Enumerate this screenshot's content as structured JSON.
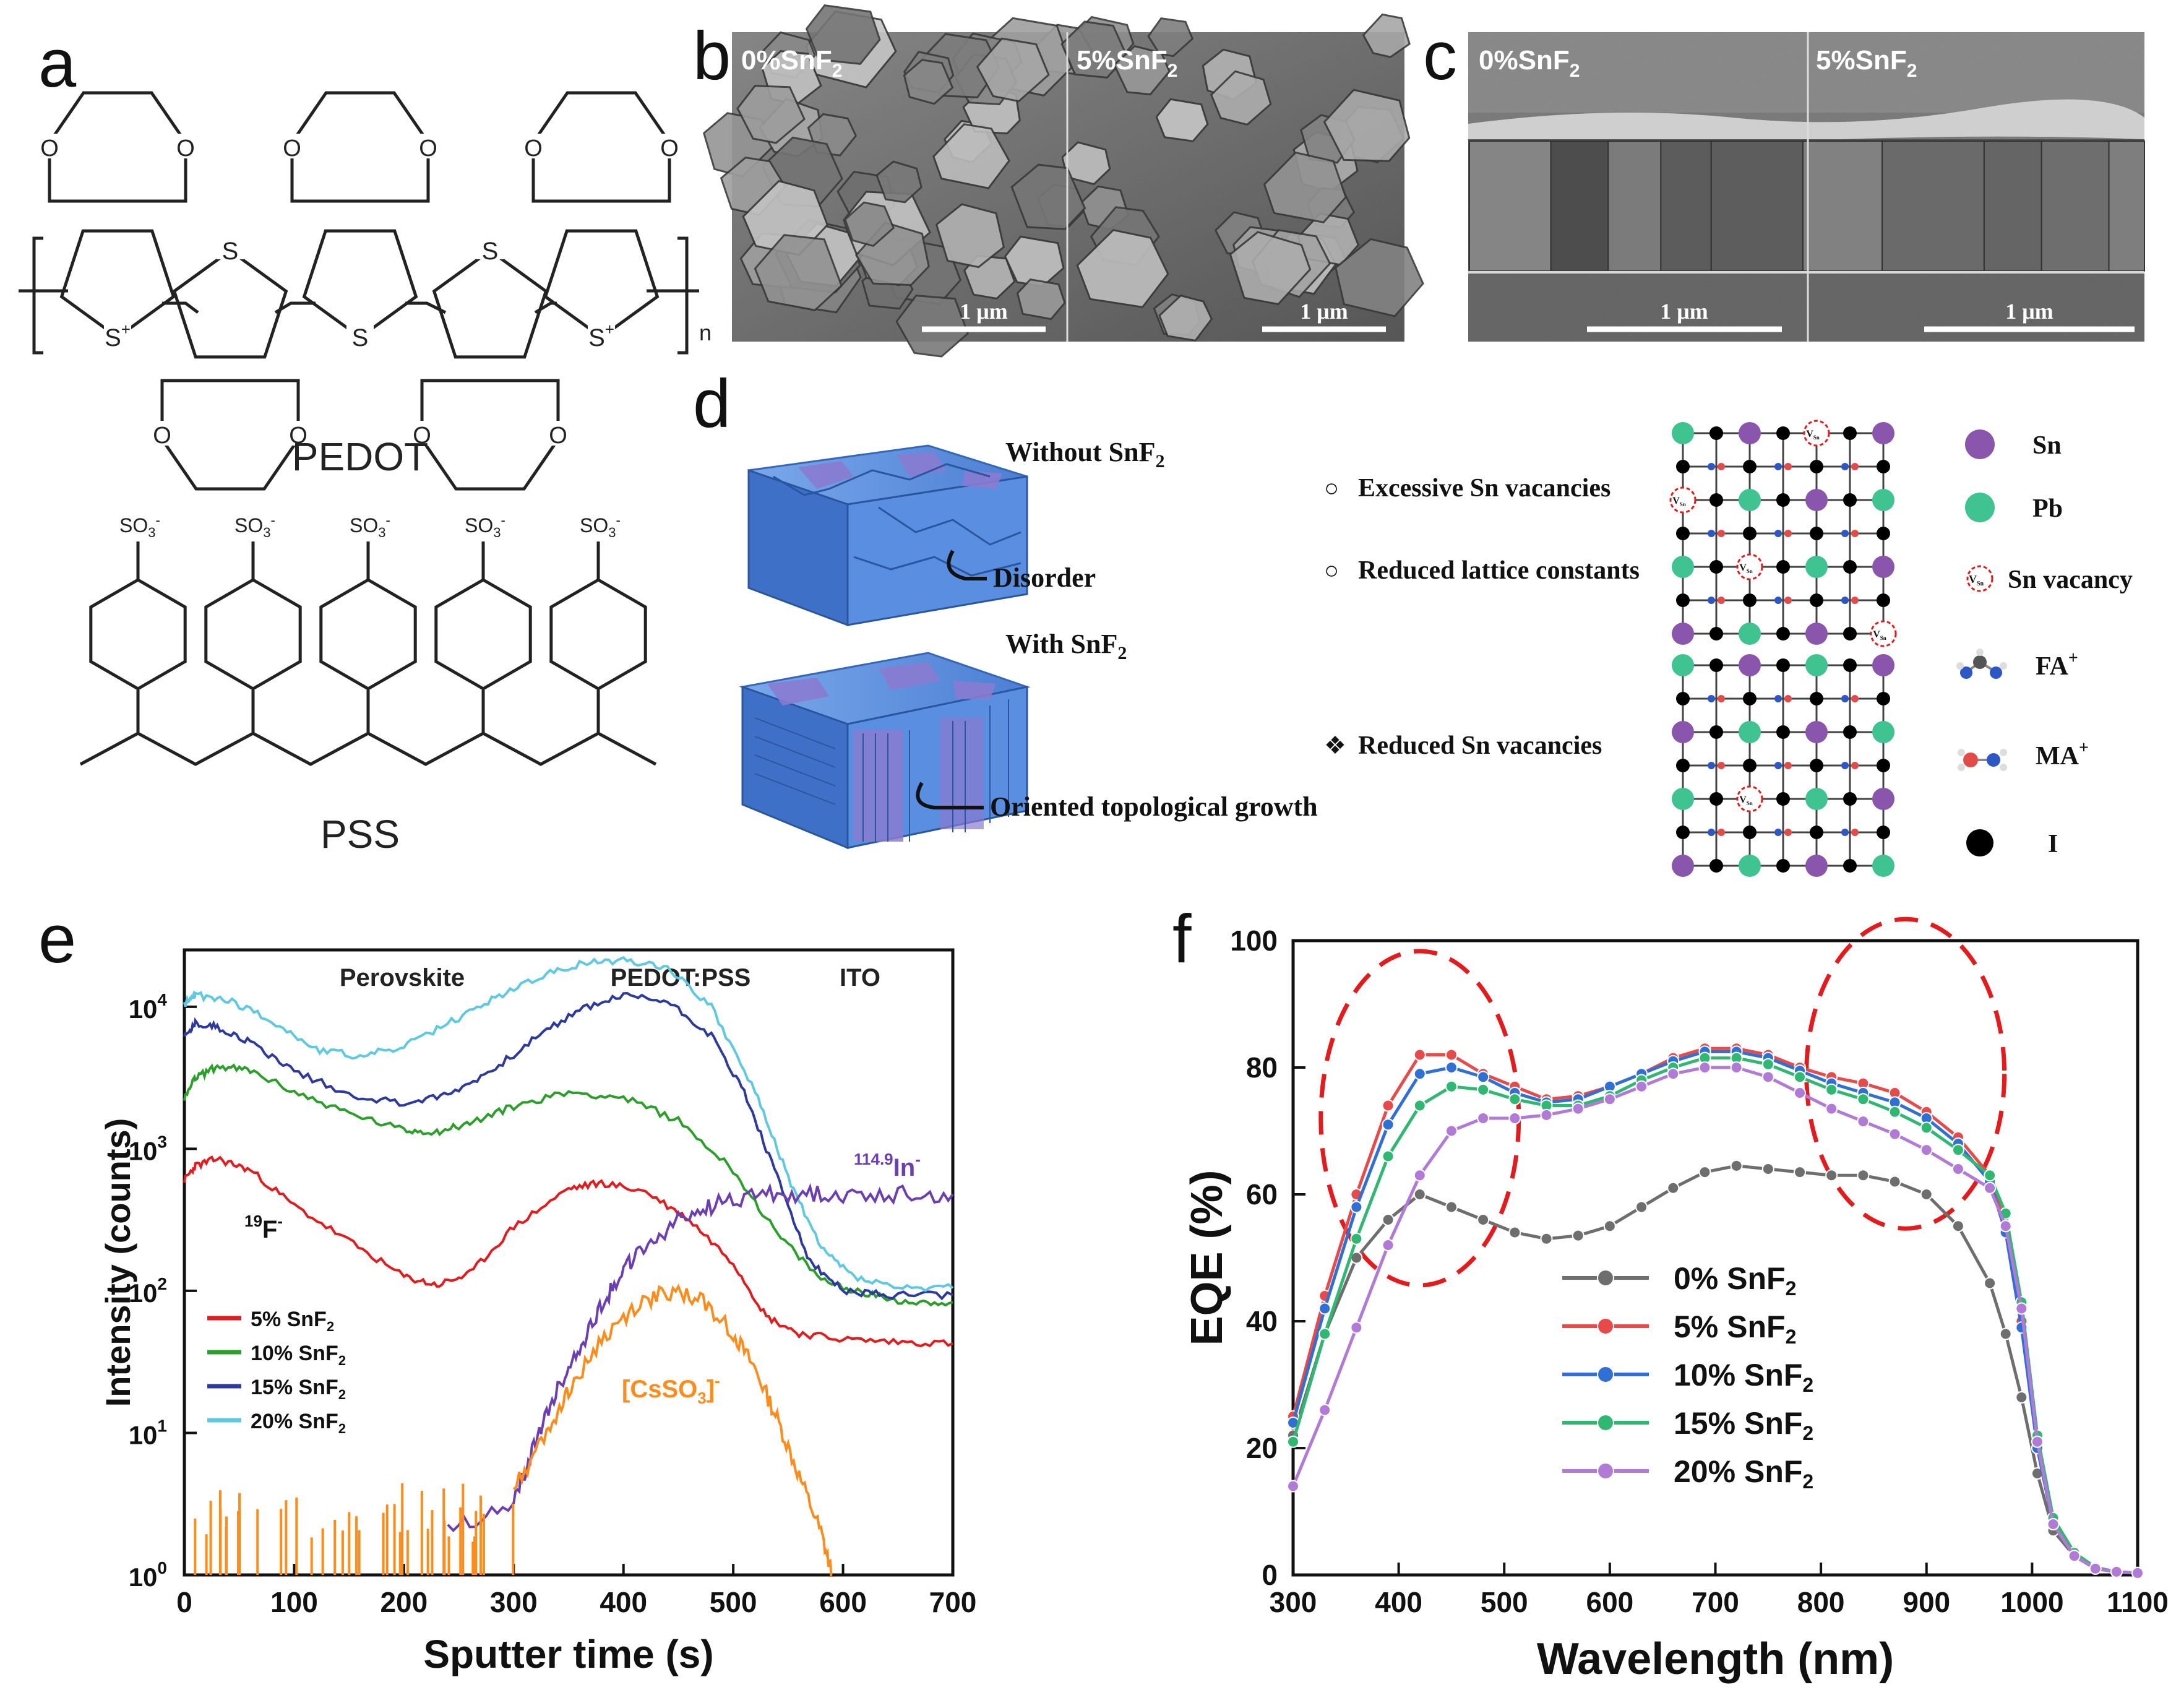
{
  "panel_labels": {
    "a": "a",
    "b": "b",
    "c": "c",
    "d": "d",
    "e": "e",
    "f": "f"
  },
  "panel_a": {
    "pedot_label": "PEDOT",
    "pss_label": "PSS",
    "O": "O",
    "S": "S",
    "S_plus": "S",
    "plus": "+",
    "n": "n",
    "SO3": "SO",
    "SO3_sub": "3",
    "SO3_sup": "-"
  },
  "panel_b": {
    "left_label": "0%SnF",
    "right_label": "5%SnF",
    "sub2": "2",
    "scalebar_left": "1 μm",
    "scalebar_right": "1 μm"
  },
  "panel_c": {
    "left_label": "0%SnF",
    "right_label": "5%SnF",
    "sub2": "2",
    "scalebar_left": "1 μm",
    "scalebar_right": "1 μm"
  },
  "panel_d": {
    "without_label": "Without SnF",
    "with_label": "With SnF",
    "sub2": "2",
    "disorder": "Disorder",
    "oriented": "Oriented topological growth",
    "bullet1": "Excessive Sn vacancies",
    "bullet2": "Reduced lattice constants",
    "bullet3": "Reduced Sn vacancies",
    "open_bullet": "○",
    "diamond_bullet": "❖",
    "vacancy_mark": "V",
    "vacancy_sub": "Sn",
    "legend": {
      "sn": "Sn",
      "pb": "Pb",
      "vacancy": "Sn vacancy",
      "fa": "FA",
      "ma": "MA",
      "plus": "+",
      "i": "I"
    }
  },
  "colors": {
    "sn": "#8a56ad",
    "pb": "#3fc391",
    "i": "#000000",
    "red": "#e41a1c",
    "green": "#2aa02a",
    "blue": "#2c3a9f",
    "cyan": "#5ec9e0",
    "orange": "#ff8c1a",
    "purple": "#6b3fb3",
    "eqe_gray": "#6e6e6e",
    "eqe_red": "#e84a4a",
    "eqe_blue": "#2f6fd6",
    "eqe_green": "#2eb872",
    "eqe_purple": "#b07ad6",
    "dashed": "#e41a1c",
    "crystal_blue": "#4f8fe0",
    "crystal_purple": "#8a7bd0"
  },
  "chart_data": [
    {
      "type": "line",
      "panel": "e",
      "xlabel": "Sputter time (s)",
      "ylabel": "Intensity (counts)",
      "xlim": [
        0,
        700
      ],
      "ylim_log10": [
        0,
        4.4
      ],
      "x_ticks": [
        "0",
        "100",
        "200",
        "300",
        "400",
        "500",
        "600",
        "700"
      ],
      "y_ticks": [
        {
          "base": "10",
          "exp": "0"
        },
        {
          "base": "10",
          "exp": "1"
        },
        {
          "base": "10",
          "exp": "2"
        },
        {
          "base": "10",
          "exp": "3"
        },
        {
          "base": "10",
          "exp": "4"
        }
      ],
      "region_labels": [
        "Perovskite",
        "PEDOT:PSS",
        "ITO"
      ],
      "annotations": {
        "fluorine": "F",
        "fluorine_sup": "19",
        "fluorine_charge": "-",
        "indium": "In",
        "indium_sup": "114.9",
        "indium_charge": "-",
        "csso3": "[CsSO",
        "csso3_sub": "3",
        "csso3_close": "]",
        "csso3_charge": "-"
      },
      "legend": [
        "5% SnF",
        "10% SnF",
        "15% SnF",
        "20% SnF"
      ],
      "legend_sub": "2",
      "series": [
        {
          "name": "5% SnF2",
          "x": [
            0,
            10,
            30,
            60,
            100,
            150,
            200,
            230,
            260,
            300,
            350,
            380,
            420,
            460,
            500,
            530,
            560,
            600,
            650,
            700
          ],
          "log_values": [
            2.78,
            2.88,
            2.93,
            2.85,
            2.6,
            2.35,
            2.1,
            2.04,
            2.12,
            2.45,
            2.72,
            2.76,
            2.7,
            2.5,
            2.2,
            1.82,
            1.7,
            1.66,
            1.64,
            1.63
          ]
        },
        {
          "name": "10% SnF2",
          "x": [
            0,
            10,
            30,
            60,
            100,
            150,
            200,
            230,
            260,
            300,
            350,
            400,
            450,
            500,
            540,
            580,
            620,
            660,
            700
          ],
          "log_values": [
            3.35,
            3.5,
            3.58,
            3.55,
            3.4,
            3.25,
            3.13,
            3.12,
            3.18,
            3.3,
            3.4,
            3.36,
            3.2,
            2.85,
            2.4,
            2.08,
            1.98,
            1.92,
            1.92
          ]
        },
        {
          "name": "15% SnF2",
          "x": [
            0,
            10,
            30,
            60,
            100,
            150,
            200,
            240,
            280,
            320,
            360,
            400,
            440,
            480,
            510,
            540,
            570,
            600,
            640,
            700
          ],
          "log_values": [
            3.78,
            3.88,
            3.86,
            3.75,
            3.55,
            3.38,
            3.32,
            3.38,
            3.55,
            3.78,
            3.98,
            4.08,
            4.04,
            3.8,
            3.4,
            2.8,
            2.2,
            2.0,
            1.97,
            1.97
          ]
        },
        {
          "name": "20% SnF2",
          "x": [
            0,
            10,
            40,
            80,
            120,
            160,
            200,
            240,
            280,
            320,
            360,
            400,
            440,
            480,
            520,
            550,
            580,
            610,
            650,
            700
          ],
          "log_values": [
            4.02,
            4.08,
            4.05,
            3.9,
            3.7,
            3.65,
            3.72,
            3.88,
            4.05,
            4.2,
            4.3,
            4.33,
            4.28,
            4.0,
            3.4,
            2.8,
            2.3,
            2.1,
            2.02,
            2.02
          ]
        },
        {
          "name": "114.9In-",
          "x": [
            240,
            300,
            320,
            340,
            360,
            380,
            400,
            420,
            450,
            480,
            520,
            560,
            600,
            650,
            700
          ],
          "log_values": [
            0.3,
            0.5,
            0.95,
            1.3,
            1.6,
            1.9,
            2.15,
            2.3,
            2.5,
            2.6,
            2.68,
            2.68,
            2.68,
            2.68,
            2.68
          ]
        },
        {
          "name": "[CsSO3]-",
          "x": [
            300,
            330,
            350,
            380,
            410,
            440,
            470,
            500,
            520,
            540,
            560,
            580,
            590
          ],
          "log_values": [
            0.6,
            1.0,
            1.3,
            1.65,
            1.88,
            2.0,
            1.95,
            1.7,
            1.45,
            1.1,
            0.7,
            0.3,
            0.0
          ]
        }
      ]
    },
    {
      "type": "line",
      "panel": "f",
      "xlabel": "Wavelength (nm)",
      "ylabel": "EQE (%)",
      "xlim": [
        300,
        1100
      ],
      "ylim": [
        0,
        100
      ],
      "x_ticks": [
        "300",
        "400",
        "500",
        "600",
        "700",
        "800",
        "900",
        "1000",
        "1100"
      ],
      "y_ticks": [
        "0",
        "20",
        "40",
        "60",
        "80",
        "100"
      ],
      "legend": [
        "0% SnF",
        "5% SnF",
        "10% SnF",
        "15% SnF",
        "20% SnF"
      ],
      "legend_sub": "2",
      "x": [
        300,
        330,
        360,
        390,
        420,
        450,
        480,
        510,
        540,
        570,
        600,
        630,
        660,
        690,
        720,
        750,
        780,
        810,
        840,
        870,
        900,
        930,
        960,
        975,
        990,
        1005,
        1020,
        1040,
        1060,
        1080,
        1100
      ],
      "series": [
        {
          "name": "0% SnF2",
          "values": [
            22,
            38,
            50,
            56,
            60,
            58,
            56,
            54,
            53,
            53.5,
            55,
            58,
            61,
            63.5,
            64.5,
            64,
            63.5,
            63,
            63,
            62,
            60,
            55,
            46,
            38,
            28,
            16,
            7,
            3,
            1,
            0.5,
            0.3
          ]
        },
        {
          "name": "5% SnF2",
          "values": [
            25,
            44,
            60,
            74,
            82,
            82,
            79,
            77,
            75,
            75.5,
            77,
            79,
            81.5,
            83,
            83,
            82,
            80,
            78.5,
            77.5,
            76,
            73,
            69,
            63,
            55,
            40,
            20,
            8,
            3,
            1,
            0.5,
            0.3
          ]
        },
        {
          "name": "10% SnF2",
          "values": [
            24,
            42,
            58,
            71,
            79,
            80,
            78.5,
            76,
            74.5,
            75,
            77,
            79,
            81,
            82.5,
            82.5,
            81.5,
            79.5,
            77.5,
            76,
            74.5,
            72,
            68,
            62,
            54,
            39,
            20,
            8,
            3,
            1,
            0.5,
            0.3
          ]
        },
        {
          "name": "15% SnF2",
          "values": [
            21,
            38,
            53,
            66,
            74,
            77,
            76.5,
            75,
            74,
            74,
            75.5,
            78,
            80,
            81.5,
            81.5,
            80.5,
            78.5,
            76.5,
            75,
            73,
            70.5,
            67,
            63,
            57,
            43,
            22,
            9,
            3.5,
            1.2,
            0.5,
            0.3
          ]
        },
        {
          "name": "20% SnF2",
          "values": [
            14,
            26,
            39,
            52,
            63,
            70,
            72,
            72,
            72.5,
            73.5,
            75,
            77,
            79,
            80,
            80,
            78.5,
            76,
            73.5,
            71.5,
            69.5,
            67,
            64,
            61,
            55,
            42,
            21,
            8,
            3,
            1,
            0.5,
            0.3
          ]
        }
      ]
    }
  ]
}
